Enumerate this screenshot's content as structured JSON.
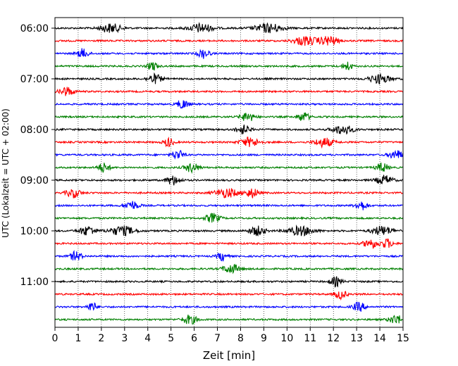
{
  "chart_data": {
    "type": "line",
    "title": "",
    "xlabel": "Zeit  [min]",
    "ylabel": "UTC (Lokalzeit = UTC + 02:00)",
    "xlim": [
      0,
      15
    ],
    "x_ticks": [
      0,
      1,
      2,
      3,
      4,
      5,
      6,
      7,
      8,
      9,
      10,
      11,
      12,
      13,
      14,
      15
    ],
    "y_tick_labels": [
      "06:00",
      "07:00",
      "08:00",
      "09:00",
      "10:00",
      "11:00"
    ],
    "grid": "vertical dotted",
    "trace_interval_minutes": 15,
    "colors_cycle": [
      "#000000",
      "#ff0000",
      "#0000ff",
      "#008000"
    ],
    "traces": [
      {
        "start": "06:00",
        "color": "#000000",
        "bursts": [
          [
            2.4,
            0.45
          ],
          [
            6.3,
            0.5
          ],
          [
            9.2,
            0.6
          ]
        ]
      },
      {
        "start": "06:15",
        "color": "#ff0000",
        "bursts": [
          [
            10.8,
            0.5
          ],
          [
            11.8,
            0.4
          ]
        ]
      },
      {
        "start": "06:30",
        "color": "#0000ff",
        "bursts": [
          [
            1.2,
            0.25
          ],
          [
            6.4,
            0.25
          ]
        ]
      },
      {
        "start": "06:45",
        "color": "#008000",
        "bursts": [
          [
            4.2,
            0.2
          ],
          [
            12.6,
            0.2
          ]
        ]
      },
      {
        "start": "07:00",
        "color": "#000000",
        "bursts": [
          [
            4.3,
            0.3
          ],
          [
            14.0,
            0.45
          ]
        ]
      },
      {
        "start": "07:15",
        "color": "#ff0000",
        "bursts": [
          [
            0.5,
            0.3
          ]
        ]
      },
      {
        "start": "07:30",
        "color": "#0000ff",
        "bursts": [
          [
            5.5,
            0.25
          ]
        ]
      },
      {
        "start": "07:45",
        "color": "#008000",
        "bursts": [
          [
            8.3,
            0.3
          ],
          [
            10.7,
            0.25
          ]
        ]
      },
      {
        "start": "08:00",
        "color": "#000000",
        "bursts": [
          [
            8.1,
            0.3
          ],
          [
            12.4,
            0.45
          ]
        ]
      },
      {
        "start": "08:15",
        "color": "#ff0000",
        "bursts": [
          [
            4.9,
            0.2
          ],
          [
            8.4,
            0.4
          ],
          [
            11.6,
            0.4
          ]
        ]
      },
      {
        "start": "08:30",
        "color": "#0000ff",
        "bursts": [
          [
            5.3,
            0.25
          ],
          [
            14.7,
            0.3
          ]
        ]
      },
      {
        "start": "08:45",
        "color": "#008000",
        "bursts": [
          [
            2.1,
            0.25
          ],
          [
            5.9,
            0.3
          ],
          [
            14.1,
            0.25
          ]
        ]
      },
      {
        "start": "09:00",
        "color": "#000000",
        "bursts": [
          [
            5.1,
            0.3
          ],
          [
            14.2,
            0.35
          ]
        ]
      },
      {
        "start": "09:15",
        "color": "#ff0000",
        "bursts": [
          [
            0.8,
            0.3
          ],
          [
            7.4,
            0.5
          ],
          [
            8.5,
            0.3
          ]
        ]
      },
      {
        "start": "09:30",
        "color": "#0000ff",
        "bursts": [
          [
            3.3,
            0.3
          ],
          [
            13.2,
            0.25
          ]
        ]
      },
      {
        "start": "09:45",
        "color": "#008000",
        "bursts": [
          [
            6.8,
            0.3
          ]
        ]
      },
      {
        "start": "10:00",
        "color": "#000000",
        "bursts": [
          [
            1.4,
            0.35
          ],
          [
            2.9,
            0.55
          ],
          [
            8.7,
            0.35
          ],
          [
            10.6,
            0.55
          ],
          [
            14.1,
            0.45
          ]
        ]
      },
      {
        "start": "10:15",
        "color": "#ff0000",
        "bursts": [
          [
            13.6,
            0.3
          ],
          [
            14.3,
            0.25
          ]
        ]
      },
      {
        "start": "10:30",
        "color": "#0000ff",
        "bursts": [
          [
            0.9,
            0.25
          ],
          [
            7.2,
            0.2
          ]
        ]
      },
      {
        "start": "10:45",
        "color": "#008000",
        "bursts": [
          [
            7.6,
            0.35
          ]
        ]
      },
      {
        "start": "11:00",
        "color": "#000000",
        "bursts": [
          [
            12.1,
            0.25
          ]
        ]
      },
      {
        "start": "11:15",
        "color": "#ff0000",
        "bursts": [
          [
            12.3,
            0.25
          ]
        ]
      },
      {
        "start": "11:30",
        "color": "#0000ff",
        "bursts": [
          [
            1.6,
            0.2
          ],
          [
            13.1,
            0.25
          ]
        ]
      },
      {
        "start": "11:45",
        "color": "#008000",
        "bursts": [
          [
            5.8,
            0.3
          ],
          [
            14.7,
            0.3
          ]
        ]
      }
    ]
  }
}
